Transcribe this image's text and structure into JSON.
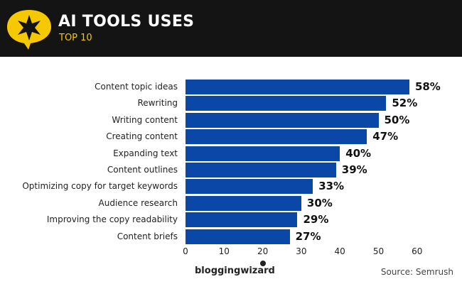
{
  "header": {
    "title": "AI TOOLS USES",
    "subtitle": "TOP 10",
    "logo_icon": "star-speech-bubble-icon",
    "colors": {
      "background": "#141414",
      "title": "#ffffff",
      "subtitle": "#f5c800",
      "logo": "#f5c800"
    }
  },
  "chart_data": {
    "type": "bar",
    "orientation": "horizontal",
    "title": "AI TOOLS USES",
    "subtitle": "TOP 10",
    "categories": [
      "Content topic ideas",
      "Rewriting",
      "Writing content",
      "Creating content",
      "Expanding text",
      "Content outlines",
      "Optimizing copy for target keywords",
      "Audience research",
      "Improving the copy readability",
      "Content briefs"
    ],
    "values": [
      58,
      52,
      50,
      47,
      40,
      39,
      33,
      30,
      29,
      27
    ],
    "value_labels": [
      "58%",
      "52%",
      "50%",
      "47%",
      "40%",
      "39%",
      "33%",
      "30%",
      "29%",
      "27%"
    ],
    "xlabel": "",
    "ylabel": "",
    "xlim": [
      0,
      60
    ],
    "x_ticks": [
      "0",
      "10",
      "20",
      "30",
      "40",
      "50",
      "60"
    ],
    "grid": false,
    "legend": null,
    "bar_color": "#0a47a6"
  },
  "footer": {
    "brand": "bloggingwizard",
    "source": "Source: Semrush"
  }
}
